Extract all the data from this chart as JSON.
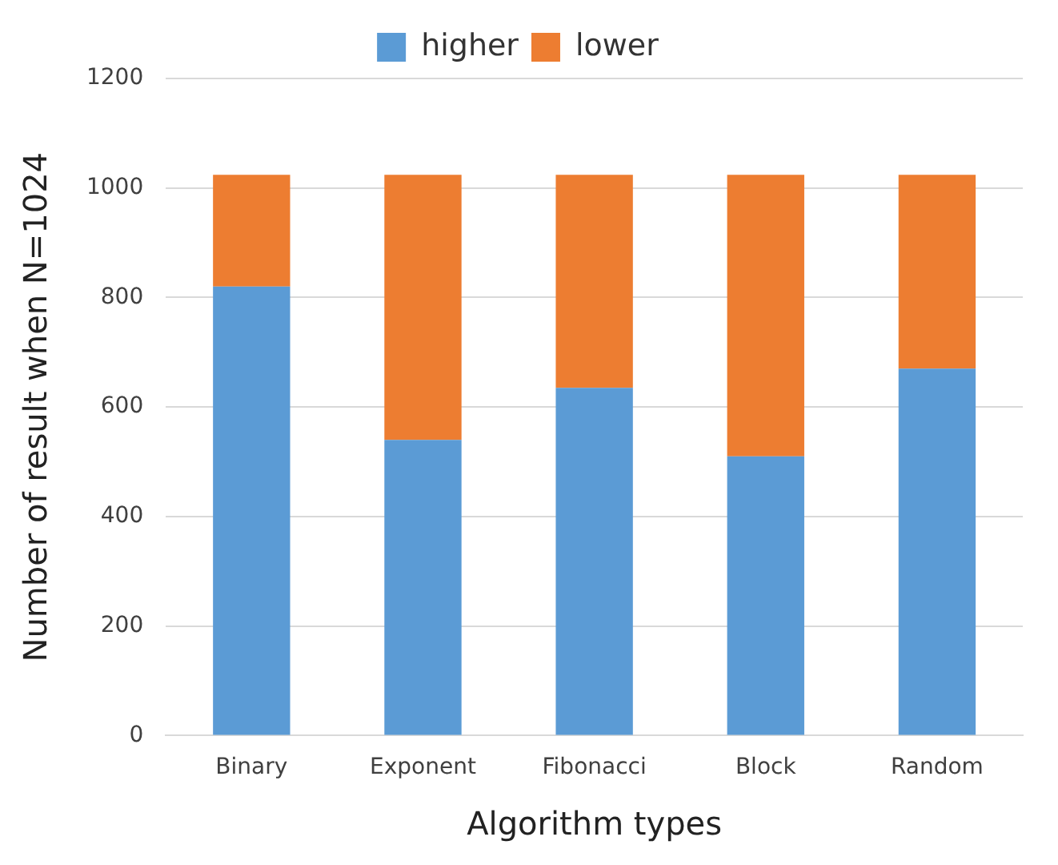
{
  "chart_data": {
    "type": "bar",
    "stacked": true,
    "xlabel": "Algorithm types",
    "ylabel": "Number of result when N=1024",
    "categories": [
      "Binary",
      "Exponent",
      "Fibonacci",
      "Block",
      "Random"
    ],
    "series": [
      {
        "name": "higher",
        "color": "#5b9bd5",
        "values": [
          820,
          540,
          635,
          510,
          670
        ]
      },
      {
        "name": "lower",
        "color": "#ed7d31",
        "values": [
          204,
          484,
          389,
          514,
          354
        ]
      }
    ],
    "ylim": [
      0,
      1200
    ],
    "yticks": [
      0,
      200,
      400,
      600,
      800,
      1000,
      1200
    ],
    "grid": "y",
    "legend": "top"
  }
}
